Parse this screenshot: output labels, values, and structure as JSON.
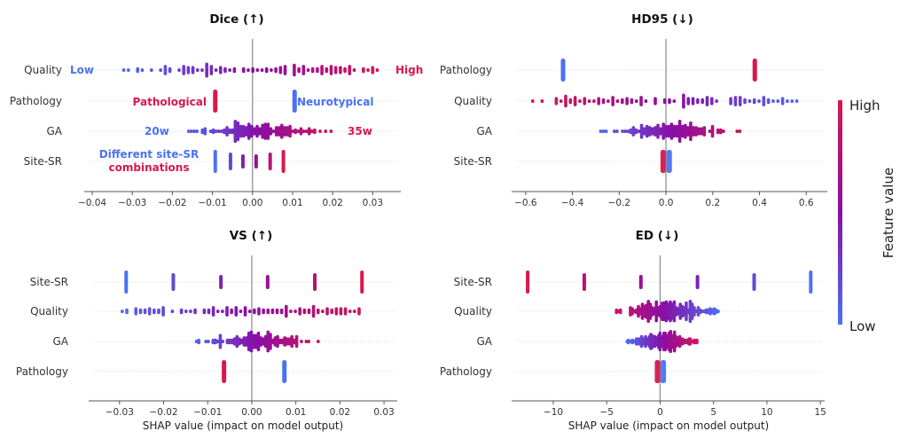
{
  "chart_data": [
    {
      "type": "scatter",
      "subtype": "shap-beeswarm",
      "title": "Dice (↑)",
      "xlabel": "",
      "xlim": [
        -0.042,
        0.037
      ],
      "xticks": [
        -0.04,
        -0.03,
        -0.02,
        -0.01,
        0.0,
        0.01,
        0.02,
        0.03
      ],
      "xtick_labels": [
        "−0.04",
        "−0.03",
        "−0.02",
        "−0.01",
        "0.00",
        "0.01",
        "0.02",
        "0.03"
      ],
      "features": [
        {
          "name": "Quality",
          "kind": "continuous",
          "range": [
            -0.035,
            0.034
          ],
          "low_side": "left",
          "density": "wide",
          "count": 110
        },
        {
          "name": "Pathology",
          "kind": "binary",
          "values": [
            -0.0093,
            0.0105
          ],
          "colors": [
            "high",
            "low"
          ]
        },
        {
          "name": "GA",
          "kind": "continuous",
          "range": [
            -0.019,
            0.022
          ],
          "low_side": "left",
          "density": "center",
          "count": 150
        },
        {
          "name": "Site-SR",
          "kind": "discrete",
          "values": [
            -0.0093,
            -0.0055,
            -0.0024,
            0.0009,
            0.0044,
            0.0077
          ],
          "color_fracs": [
            0.0,
            0.2,
            0.4,
            0.6,
            0.8,
            1.0
          ]
        }
      ],
      "annotations": [
        {
          "feature": "Quality",
          "text": "Low",
          "color": "low",
          "side": "left"
        },
        {
          "feature": "Quality",
          "text": "High",
          "color": "high",
          "side": "right"
        },
        {
          "feature": "Pathology",
          "text": "Pathological",
          "color": "high",
          "at": -0.0093,
          "side": "left"
        },
        {
          "feature": "Pathology",
          "text": "Neurotypical",
          "color": "low",
          "at": 0.0105,
          "side": "right"
        },
        {
          "feature": "GA",
          "text": "20w",
          "color": "low",
          "side": "left"
        },
        {
          "feature": "GA",
          "text": "35w",
          "color": "high",
          "side": "right"
        },
        {
          "feature": "Site-SR",
          "text": "Different site-SR",
          "color": "low",
          "side": "left-line1"
        },
        {
          "feature": "Site-SR",
          "text": "combinations",
          "color": "high",
          "side": "left-line2"
        }
      ]
    },
    {
      "type": "scatter",
      "subtype": "shap-beeswarm",
      "title": "HD95  (↓)",
      "xlabel": "",
      "xlim": [
        -0.66,
        0.69
      ],
      "xticks": [
        -0.6,
        -0.4,
        -0.2,
        0.0,
        0.2,
        0.4,
        0.6
      ],
      "xtick_labels": [
        "−0.6",
        "−0.4",
        "−0.2",
        "0.0",
        "0.2",
        "0.4",
        "0.6"
      ],
      "features": [
        {
          "name": "Pathology",
          "kind": "binary",
          "values": [
            -0.44,
            0.38
          ],
          "colors": [
            "low",
            "high"
          ]
        },
        {
          "name": "Quality",
          "kind": "continuous",
          "range": [
            -0.58,
            0.63
          ],
          "low_side": "right",
          "density": "wide",
          "count": 110
        },
        {
          "name": "GA",
          "kind": "continuous",
          "range": [
            -0.32,
            0.38
          ],
          "low_side": "left",
          "density": "center",
          "count": 150
        },
        {
          "name": "Site-SR",
          "kind": "binary-close",
          "values": [
            -0.012,
            0.014
          ],
          "colors": [
            "high",
            "low"
          ]
        }
      ],
      "annotations": []
    },
    {
      "type": "scatter",
      "subtype": "shap-beeswarm",
      "title": "VS (↑)",
      "xlabel": "SHAP value (impact on model output)",
      "xlim": [
        -0.037,
        0.033
      ],
      "xticks": [
        -0.03,
        -0.02,
        -0.01,
        0.0,
        0.01,
        0.02,
        0.03
      ],
      "xtick_labels": [
        "−0.03",
        "−0.02",
        "−0.01",
        "0.00",
        "0.01",
        "0.02",
        "0.03"
      ],
      "features": [
        {
          "name": "Site-SR",
          "kind": "discrete",
          "values": [
            -0.0285,
            -0.0178,
            -0.007,
            0.0036,
            0.0143,
            0.025
          ],
          "color_fracs": [
            0.0,
            0.2,
            0.4,
            0.6,
            0.8,
            1.0
          ]
        },
        {
          "name": "Quality",
          "kind": "continuous",
          "range": [
            -0.033,
            0.029
          ],
          "low_side": "left",
          "density": "wide",
          "count": 110
        },
        {
          "name": "GA",
          "kind": "continuous",
          "range": [
            -0.015,
            0.0175
          ],
          "low_side": "left",
          "density": "center",
          "count": 150
        },
        {
          "name": "Pathology",
          "kind": "binary",
          "values": [
            -0.0063,
            0.0074
          ],
          "colors": [
            "high",
            "low"
          ]
        }
      ],
      "annotations": []
    },
    {
      "type": "scatter",
      "subtype": "shap-beeswarm",
      "title": "ED (↓)",
      "xlabel": "SHAP value (impact on model output)",
      "xlim": [
        -13.9,
        15.4
      ],
      "xticks": [
        -10,
        -5,
        0,
        5,
        10,
        15
      ],
      "xtick_labels": [
        "−10",
        "−5",
        "0",
        "5",
        "10",
        "15"
      ],
      "features": [
        {
          "name": "Site-SR",
          "kind": "discrete",
          "values": [
            -12.4,
            -7.1,
            -1.8,
            3.5,
            8.8,
            14.1
          ],
          "color_fracs": [
            1.0,
            0.8,
            0.6,
            0.4,
            0.2,
            0.0
          ]
        },
        {
          "name": "Quality",
          "kind": "continuous",
          "range": [
            -5.3,
            5.9
          ],
          "low_side": "right",
          "density": "dense",
          "count": 220
        },
        {
          "name": "GA",
          "kind": "continuous",
          "range": [
            -3.4,
            4.0
          ],
          "low_side": "left",
          "density": "dense",
          "count": 200
        },
        {
          "name": "Pathology",
          "kind": "binary-close",
          "values": [
            -0.25,
            0.3
          ],
          "colors": [
            "high",
            "low"
          ]
        }
      ],
      "annotations": []
    }
  ],
  "colorbar": {
    "label": "Feature value",
    "high_label": "High",
    "low_label": "Low",
    "high_color": "#d8174c",
    "mid_color": "#8a0ea6",
    "low_color": "#4a72f2"
  }
}
